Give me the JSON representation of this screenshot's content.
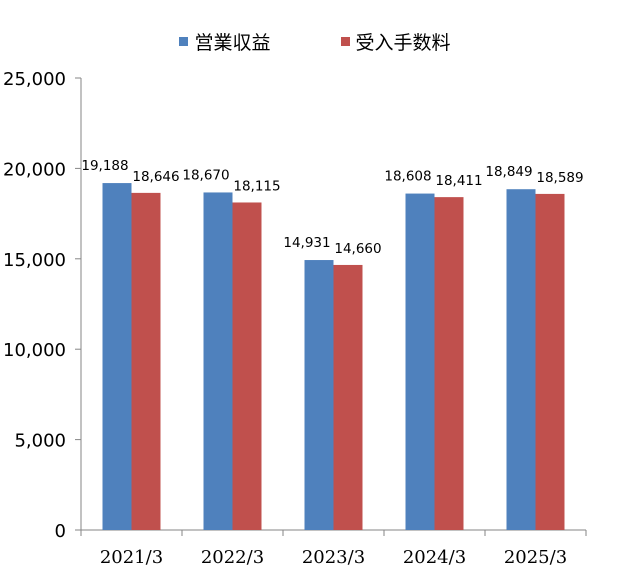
{
  "chart_data": {
    "type": "bar",
    "categories": [
      "2021/3",
      "2022/3",
      "2023/3",
      "2024/3",
      "2025/3"
    ],
    "series": [
      {
        "name": "営業収益",
        "values": [
          19188,
          18670,
          14931,
          18608,
          18849
        ],
        "labels": [
          "19,188",
          "18,670",
          "14,931",
          "18,608",
          "18,849"
        ],
        "color": "#4F81BD"
      },
      {
        "name": "受入手数料",
        "values": [
          18646,
          18115,
          14660,
          18411,
          18589
        ],
        "labels": [
          "18,646",
          "18,115",
          "14,660",
          "18,411",
          "18,589"
        ],
        "color": "#C0504D"
      }
    ],
    "ylim": [
      0,
      25000
    ],
    "yticks": [
      0,
      5000,
      10000,
      15000,
      20000,
      25000
    ],
    "ytick_labels": [
      "0",
      "5,000",
      "10,000",
      "15,000",
      "20,000",
      "25,000"
    ],
    "legend_position": "top-center",
    "grid": false
  }
}
